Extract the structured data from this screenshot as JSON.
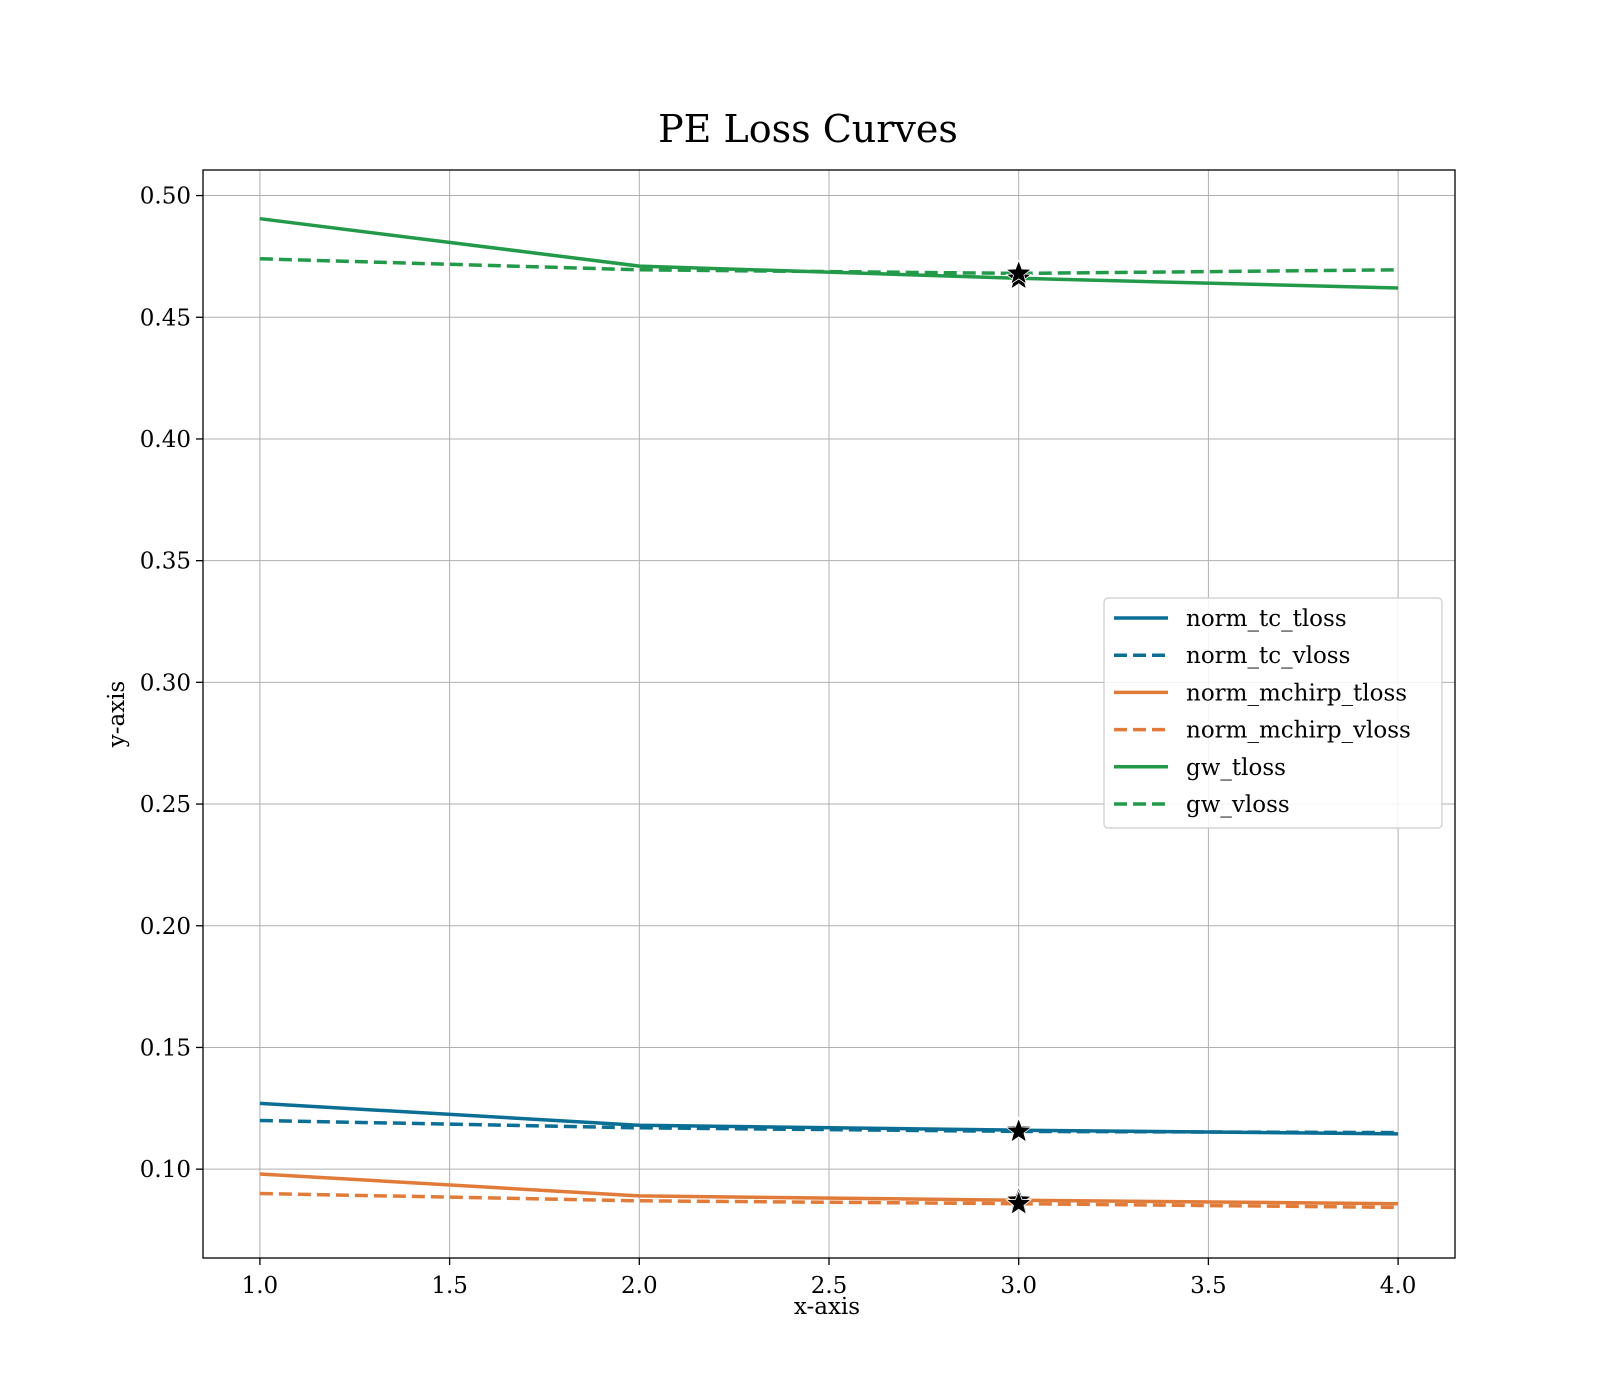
{
  "chart_data": {
    "type": "line",
    "title": "PE Loss Curves",
    "xlabel": "x-axis",
    "ylabel": "y-axis",
    "xlim": [
      0.85,
      4.15
    ],
    "ylim": [
      0.0635,
      0.5105
    ],
    "xticks": [
      1.0,
      1.5,
      2.0,
      2.5,
      3.0,
      3.5,
      4.0
    ],
    "xtick_labels": [
      "1.0",
      "1.5",
      "2.0",
      "2.5",
      "3.0",
      "3.5",
      "4.0"
    ],
    "yticks": [
      0.1,
      0.15,
      0.2,
      0.25,
      0.3,
      0.35,
      0.4,
      0.45,
      0.5
    ],
    "ytick_labels": [
      "0.10",
      "0.15",
      "0.20",
      "0.25",
      "0.30",
      "0.35",
      "0.40",
      "0.45",
      "0.50"
    ],
    "grid": true,
    "legend_position": "center-right",
    "x": [
      1.0,
      2.0,
      3.0,
      4.0
    ],
    "series": [
      {
        "name": "norm_tc_tloss",
        "values": [
          0.127,
          0.118,
          0.116,
          0.1145
        ],
        "color": "#0b6e94",
        "style": "solid"
      },
      {
        "name": "norm_tc_vloss",
        "values": [
          0.12,
          0.117,
          0.1155,
          0.115
        ],
        "color": "#0b6e94",
        "style": "dashed"
      },
      {
        "name": "norm_mchirp_tloss",
        "values": [
          0.098,
          0.089,
          0.0872,
          0.0858
        ],
        "color": "#e07b39",
        "style": "solid"
      },
      {
        "name": "norm_mchirp_vloss",
        "values": [
          0.09,
          0.087,
          0.0858,
          0.0843
        ],
        "color": "#e07b39",
        "style": "dashed"
      },
      {
        "name": "gw_tloss",
        "values": [
          0.4905,
          0.471,
          0.466,
          0.462
        ],
        "color": "#229a4a",
        "style": "solid"
      },
      {
        "name": "gw_vloss",
        "values": [
          0.474,
          0.4695,
          0.468,
          0.4695
        ],
        "color": "#229a4a",
        "style": "dashed"
      }
    ],
    "markers": [
      {
        "x": 3.0,
        "y": 0.466,
        "shape": "star"
      },
      {
        "x": 3.0,
        "y": 0.468,
        "shape": "star"
      },
      {
        "x": 3.0,
        "y": 0.116,
        "shape": "star"
      },
      {
        "x": 3.0,
        "y": 0.1155,
        "shape": "star"
      },
      {
        "x": 3.0,
        "y": 0.0872,
        "shape": "star"
      },
      {
        "x": 3.0,
        "y": 0.0858,
        "shape": "star"
      }
    ]
  }
}
